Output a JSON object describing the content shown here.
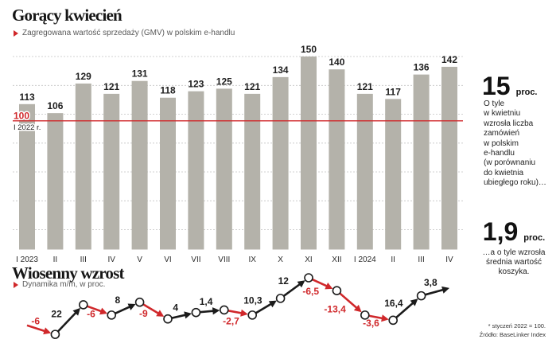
{
  "chart_data": [
    {
      "type": "bar",
      "title": "Gorący kwiecień",
      "subtitle": "Zagregowana wartość sprzedaży (GMV) w polskim e-handlu",
      "categories": [
        "I 2023",
        "II",
        "III",
        "IV",
        "V",
        "VI",
        "VII",
        "VIII",
        "IX",
        "X",
        "XI",
        "XII",
        "I 2024",
        "II",
        "III",
        "IV"
      ],
      "values": [
        113,
        106,
        129,
        121,
        131,
        118,
        123,
        125,
        121,
        134,
        150,
        140,
        121,
        117,
        136,
        142
      ],
      "ylim": [
        0,
        150
      ],
      "grid": true,
      "reference_line": {
        "value": 100,
        "label": "100",
        "note": "I 2022 r."
      },
      "colors": {
        "bar": "#b4b2aa",
        "reference": "#d0282b"
      }
    },
    {
      "type": "line",
      "title": "Wiosenny wzrost",
      "subtitle": "Dynamika m/m, w proc.",
      "values": [
        -6,
        22,
        -6,
        8,
        -9,
        4,
        1.4,
        -2.7,
        10.3,
        12,
        -6.5,
        -13.4,
        -3.6,
        16.4,
        3.8
      ],
      "labels": [
        "-6",
        "22",
        "-6",
        "8",
        "-9",
        "4",
        "1,4",
        "-2,7",
        "10,3",
        "12",
        "-6,5",
        "-13,4",
        "-3,6",
        "16,4",
        "3,8"
      ],
      "colors": {
        "positive": "#1b1b1b",
        "negative": "#d0282b"
      }
    }
  ],
  "stats": [
    {
      "value": "15",
      "unit": "proc.",
      "text_lines": [
        "O tyle",
        "w kwietniu",
        "wzrosła liczba",
        "zamówień",
        "w polskim",
        "e-handlu",
        "(w porównaniu",
        "do kwietnia",
        "ubiegłego roku)…"
      ]
    },
    {
      "value": "1,9",
      "unit": "proc.",
      "text_lines": [
        "…a o tyle wzrosła",
        "średnia wartość",
        "koszyka."
      ]
    }
  ],
  "footnote": {
    "note": "* styczeń 2022 = 100.",
    "source": "Źródło: BaseLinker Index"
  },
  "icons": {
    "subtitle_marker": "red-triangle-icon"
  }
}
